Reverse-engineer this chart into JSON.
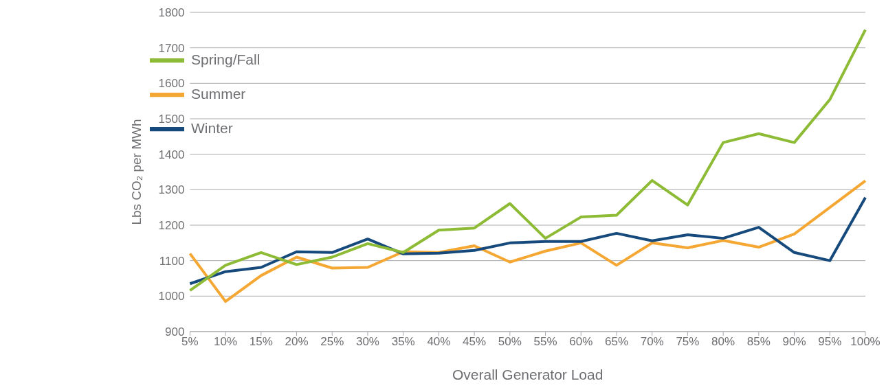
{
  "chart_data": {
    "type": "line",
    "xlabel": "Overall Generator Load",
    "ylabel": "Lbs CO₂ per MWh",
    "categories": [
      "5%",
      "10%",
      "15%",
      "20%",
      "25%",
      "30%",
      "35%",
      "40%",
      "45%",
      "50%",
      "55%",
      "60%",
      "65%",
      "70%",
      "75%",
      "80%",
      "85%",
      "90%",
      "95%",
      "100%"
    ],
    "series": [
      {
        "name": "Summer",
        "color": "#f5a733",
        "values": [
          1120,
          985,
          1058,
          1110,
          1079,
          1081,
          1125,
          1123,
          1142,
          1096,
          1127,
          1150,
          1087,
          1150,
          1136,
          1157,
          1138,
          1175,
          1250,
          1325
        ]
      },
      {
        "name": "Winter",
        "color": "#174a7c",
        "values": [
          1035,
          1069,
          1081,
          1125,
          1123,
          1161,
          1119,
          1121,
          1129,
          1150,
          1154,
          1154,
          1177,
          1156,
          1173,
          1163,
          1194,
          1123,
          1100,
          1278
        ]
      },
      {
        "name": "Spring/Fall",
        "color": "#8dbb35",
        "values": [
          1016,
          1087,
          1123,
          1089,
          1110,
          1148,
          1123,
          1186,
          1192,
          1261,
          1163,
          1223,
          1228,
          1326,
          1257,
          1433,
          1458,
          1433,
          1554,
          1751
        ]
      }
    ],
    "ylim": [
      900,
      1800
    ],
    "yticks": [
      900,
      1000,
      1100,
      1200,
      1300,
      1400,
      1500,
      1600,
      1700,
      1800
    ],
    "grid": "y",
    "legend": "top left",
    "marker": "none",
    "line_style": "solid"
  }
}
